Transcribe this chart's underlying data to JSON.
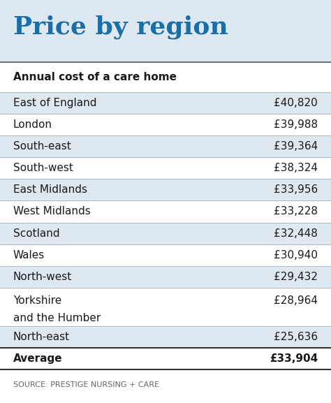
{
  "title": "Price by region",
  "title_color": "#1a6fa8",
  "title_bg_color": "#dde8f0",
  "table_bg_color": "#ffffff",
  "subtitle": "Annual cost of a care home",
  "rows": [
    {
      "region": "East of England",
      "value": "£40,820",
      "two_line": false
    },
    {
      "region": "London",
      "value": "£39,988",
      "two_line": false
    },
    {
      "region": "South-east",
      "value": "£39,364",
      "two_line": false
    },
    {
      "region": "South-west",
      "value": "£38,324",
      "two_line": false
    },
    {
      "region": "East Midlands",
      "value": "£33,956",
      "two_line": false
    },
    {
      "region": "West Midlands",
      "value": "£33,228",
      "two_line": false
    },
    {
      "region": "Scotland",
      "value": "£32,448",
      "two_line": false
    },
    {
      "region": "Wales",
      "value": "£30,940",
      "two_line": false
    },
    {
      "region": "North-west",
      "value": "£29,432",
      "two_line": false
    },
    {
      "region": "Yorkshire\nand the Humber",
      "value": "£28,964",
      "two_line": true
    },
    {
      "region": "North-east",
      "value": "£25,636",
      "two_line": false
    }
  ],
  "avg_label": "Average",
  "avg_value": "£33,904",
  "source": "SOURCE: PRESTIGE NURSING + CARE",
  "row_color_even": "#dde8f0",
  "row_color_odd": "#ffffff",
  "avg_row_color": "#ffffff",
  "divider_color": "#aab8c2",
  "text_color": "#1a1a1a",
  "source_color": "#666666",
  "title_fontsize": 26,
  "subtitle_fontsize": 11,
  "row_fontsize": 11,
  "avg_fontsize": 11,
  "source_fontsize": 8,
  "fig_width": 4.74,
  "fig_height": 5.77,
  "dpi": 100
}
